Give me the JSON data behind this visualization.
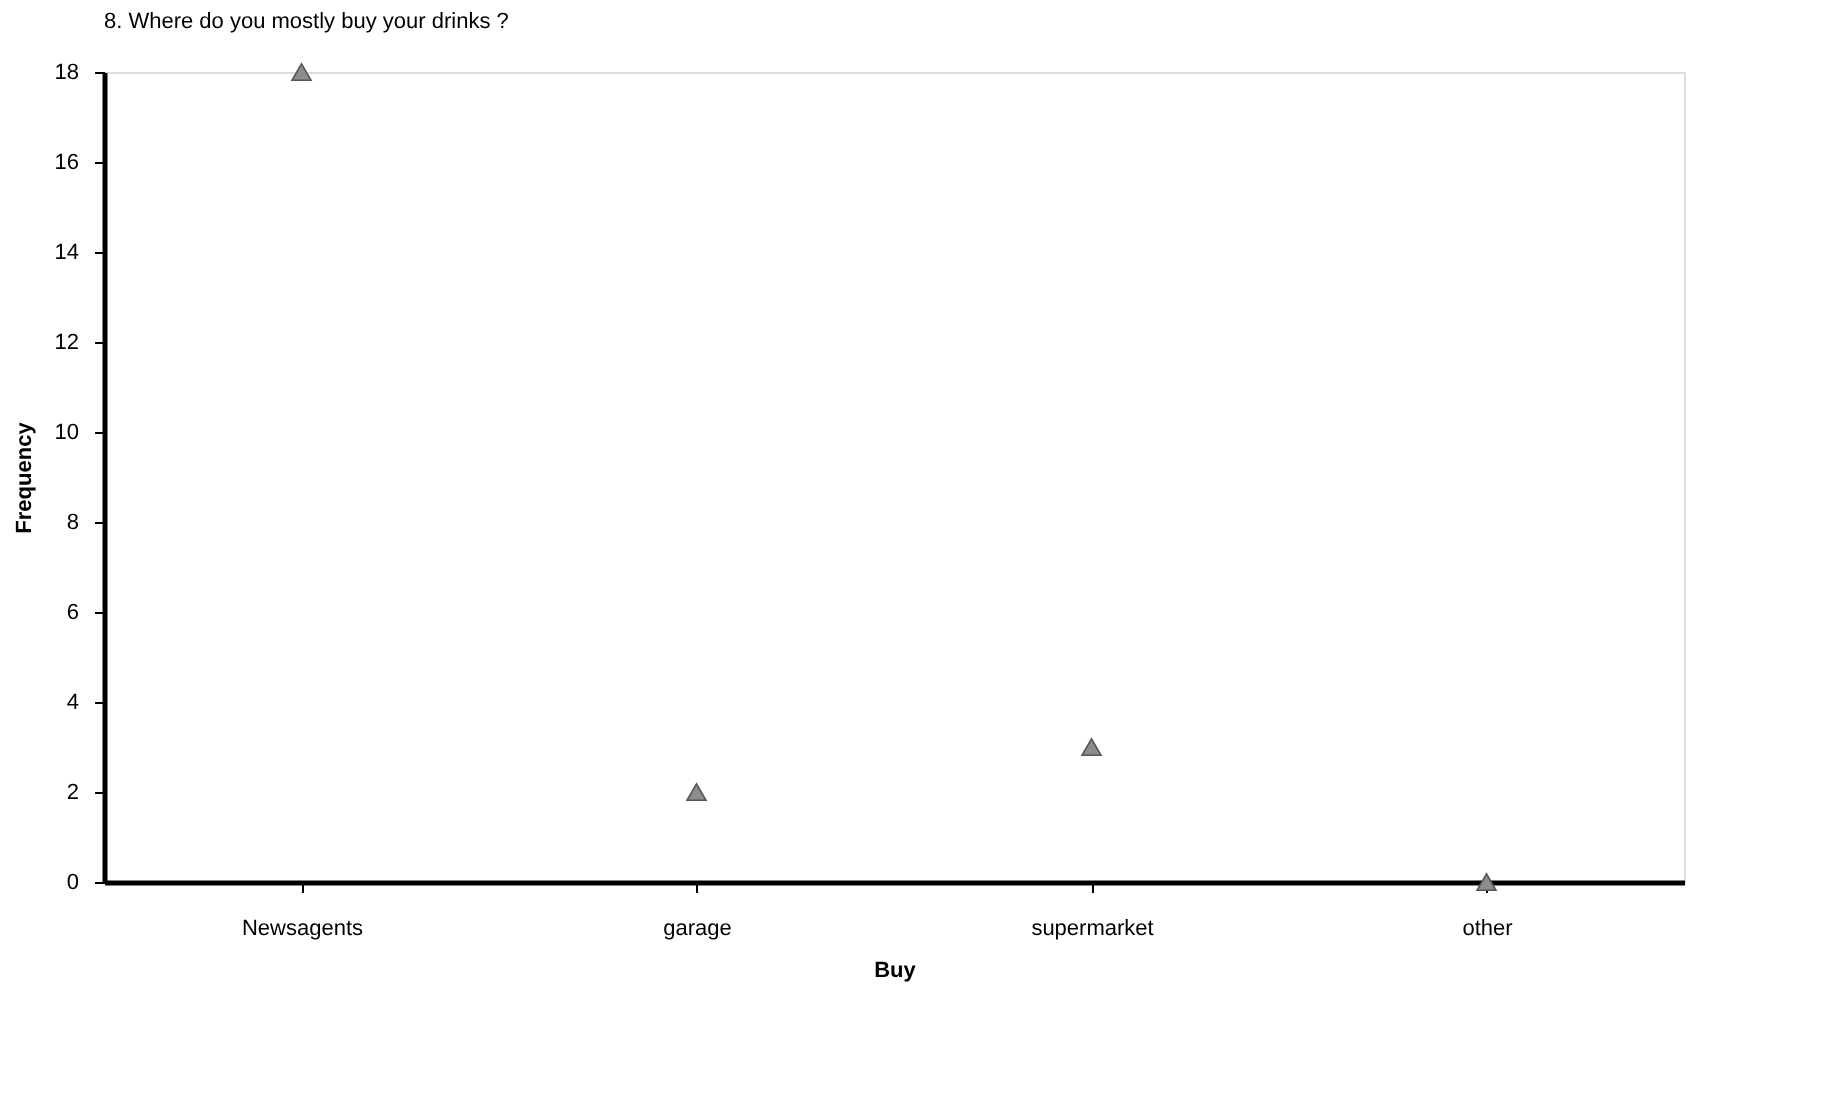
{
  "chart_data": {
    "type": "scatter",
    "title": "8. Where do you mostly buy your drinks ?",
    "xlabel": "Buy",
    "ylabel": "Frequency",
    "categories": [
      "Newsagents",
      "garage",
      "supermarket",
      "other"
    ],
    "series": [
      {
        "color": "#8c8c8c",
        "values": [
          18,
          2,
          3,
          0
        ]
      }
    ],
    "ylim": [
      0,
      18
    ],
    "yticks": [
      0,
      2,
      4,
      6,
      8,
      10,
      12,
      14,
      16,
      18
    ],
    "marker": "triangle",
    "grid": false,
    "legend": false
  }
}
